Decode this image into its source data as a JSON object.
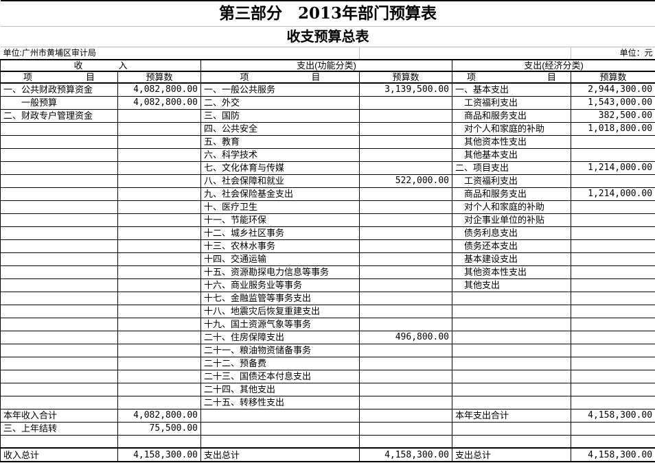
{
  "title": "第三部分　2013年部门预算表",
  "subtitle": "收支预算总表",
  "unit_left": "单位:广州市黄埔区审计局",
  "unit_right": "单位：元",
  "table": {
    "row_count": 25,
    "income": {
      "header": "收　　　　入",
      "item_col": "项　　　　　　目",
      "value_col": "预算数",
      "items": [
        {
          "label": "一、公共财政预算资金",
          "value": "4,082,800.00"
        },
        {
          "label": "一般预算",
          "value": "4,082,800.00",
          "indent": 2
        },
        {
          "label": "二、财政专户管理资金",
          "value": ""
        }
      ]
    },
    "function_class": {
      "header": "支出(功能分类)",
      "item_col": "项　　　　　　　目",
      "value_col": "预算数",
      "items": [
        {
          "label": "一、一般公共服务",
          "value": "3,139,500.00"
        },
        {
          "label": "二、外交",
          "value": ""
        },
        {
          "label": "三、国防",
          "value": ""
        },
        {
          "label": "四、公共安全",
          "value": ""
        },
        {
          "label": "五、教育",
          "value": ""
        },
        {
          "label": "六、科学技术",
          "value": ""
        },
        {
          "label": "七、文化体育与传媒",
          "value": ""
        },
        {
          "label": "八、社会保障和就业",
          "value": "522,000.00"
        },
        {
          "label": "九、社会保险基金支出",
          "value": ""
        },
        {
          "label": "十、医疗卫生",
          "value": ""
        },
        {
          "label": "十一、节能环保",
          "value": ""
        },
        {
          "label": "十二、城乡社区事务",
          "value": ""
        },
        {
          "label": "十三、农林水事务",
          "value": ""
        },
        {
          "label": "十四、交通运输",
          "value": ""
        },
        {
          "label": "十五、资源勘探电力信息等事务",
          "value": ""
        },
        {
          "label": "十六、商业服务业等事务",
          "value": ""
        },
        {
          "label": "十七、金融监管等事务支出",
          "value": ""
        },
        {
          "label": "十八、地震灾后恢复重建支出",
          "value": ""
        },
        {
          "label": "十九、国土资源气象等事务",
          "value": ""
        },
        {
          "label": "二十、住房保障支出",
          "value": "496,800.00"
        },
        {
          "label": "二十一、粮油物资储备事务",
          "value": ""
        },
        {
          "label": "二十二、预备费",
          "value": ""
        },
        {
          "label": "二十三、国债还本付息支出",
          "value": ""
        },
        {
          "label": "二十四、其他支出",
          "value": ""
        },
        {
          "label": "二十五、转移性支出",
          "value": ""
        }
      ]
    },
    "economic_class": {
      "header": "支出(经济分类)",
      "item_col": "项　　　　　　　　目",
      "value_col": "预算数",
      "items": [
        {
          "label": "一、基本支出",
          "value": "2,944,300.00"
        },
        {
          "label": "工资福利支出",
          "value": "1,543,000.00",
          "indent": 1
        },
        {
          "label": "商品和服务支出",
          "value": "382,500.00",
          "indent": 1
        },
        {
          "label": "对个人和家庭的补助",
          "value": "1,018,800.00",
          "indent": 1
        },
        {
          "label": "其他资本性支出",
          "value": "",
          "indent": 1
        },
        {
          "label": "其他基本支出",
          "value": "",
          "indent": 1
        },
        {
          "label": "二、项目支出",
          "value": "1,214,000.00"
        },
        {
          "label": "工资福利支出",
          "value": "",
          "indent": 1
        },
        {
          "label": "商品和服务支出",
          "value": "1,214,000.00",
          "indent": 1
        },
        {
          "label": "对个人和家庭的补助",
          "value": "",
          "indent": 1
        },
        {
          "label": "对企事业单位的补贴",
          "value": "",
          "indent": 1
        },
        {
          "label": "债务利息支出",
          "value": "",
          "indent": 1
        },
        {
          "label": "债务还本支出",
          "value": "",
          "indent": 1
        },
        {
          "label": "基本建设支出",
          "value": "",
          "indent": 1
        },
        {
          "label": "其他资本性支出",
          "value": "",
          "indent": 1
        },
        {
          "label": "其他支出",
          "value": "",
          "indent": 1
        }
      ]
    },
    "summary_rows": [
      {
        "cells": [
          {
            "t": "本年收入合计"
          },
          {
            "t": "4,082,800.00",
            "num": true
          },
          {
            "t": ""
          },
          {
            "t": ""
          },
          {
            "t": "本年支出合计"
          },
          {
            "t": "4,158,300.00",
            "num": true
          }
        ]
      },
      {
        "cells": [
          {
            "t": "三、上年结转"
          },
          {
            "t": "75,500.00",
            "num": true
          },
          {
            "t": ""
          },
          {
            "t": ""
          },
          {
            "t": ""
          },
          {
            "t": ""
          }
        ]
      },
      {
        "cells": [
          {
            "t": ""
          },
          {
            "t": ""
          },
          {
            "t": ""
          },
          {
            "t": ""
          },
          {
            "t": ""
          },
          {
            "t": ""
          }
        ]
      },
      {
        "total": true,
        "cells": [
          {
            "t": "收入总计",
            "center": true
          },
          {
            "t": "4,158,300.00",
            "num": true
          },
          {
            "t": "支出总计",
            "center": true
          },
          {
            "t": "4,158,300.00",
            "num": true
          },
          {
            "t": "支出总计",
            "center": true
          },
          {
            "t": "4,158,300.00",
            "num": true
          }
        ]
      }
    ]
  }
}
